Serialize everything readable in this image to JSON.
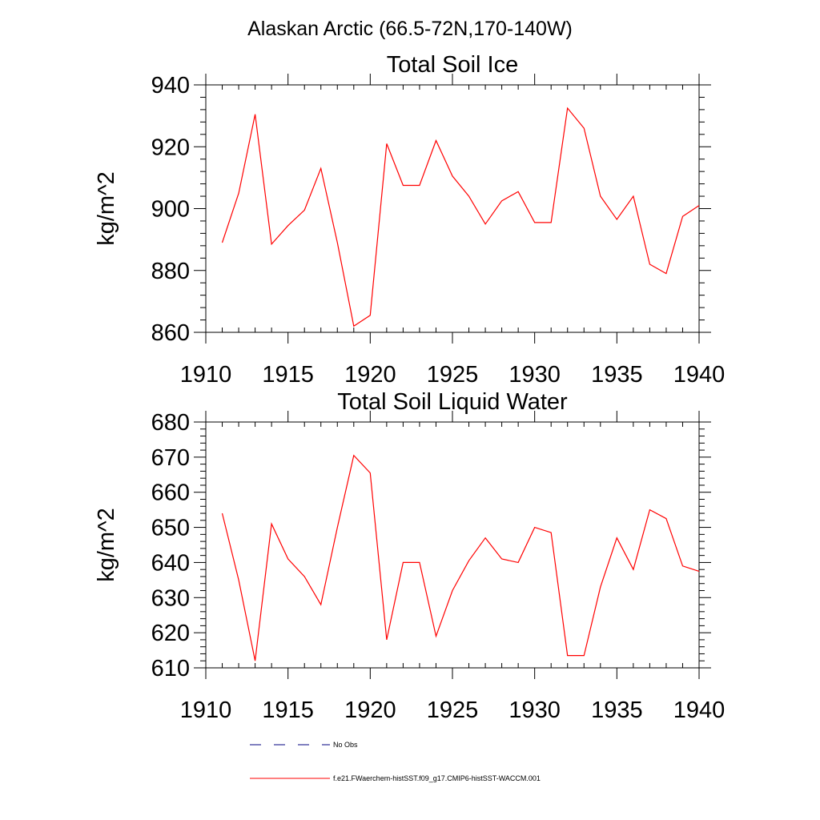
{
  "figure": {
    "title": "Alaskan Arctic (66.5-72N,170-140W)"
  },
  "legend": {
    "obs_label": "No Obs",
    "model_label": "f.e21.FWaerchem-histSST.f09_g17.CMIP6-histSST-WACCM.001",
    "obs_color": "#000080",
    "model_color": "#ff0000"
  },
  "chart_data": [
    {
      "type": "line",
      "title": "Total Soil Ice",
      "ylabel": "kg/m^2",
      "xlabel": "",
      "xlim": [
        1910,
        1940
      ],
      "ylim": [
        860,
        940
      ],
      "xticks": [
        1910,
        1915,
        1920,
        1925,
        1930,
        1935,
        1940
      ],
      "yticks": [
        860,
        880,
        900,
        920,
        940
      ],
      "series": [
        {
          "color": "#ff0000",
          "x": [
            1911,
            1912,
            1913,
            1914,
            1915,
            1916,
            1917,
            1918,
            1919,
            1920,
            1921,
            1922,
            1923,
            1924,
            1925,
            1926,
            1927,
            1928,
            1929,
            1930,
            1931,
            1932,
            1933,
            1934,
            1935,
            1936,
            1937,
            1938,
            1939,
            1940
          ],
          "values": [
            889,
            905,
            930.5,
            888.5,
            894.5,
            899.5,
            913,
            889,
            862,
            865.5,
            921,
            907.5,
            907.5,
            922,
            910.5,
            904,
            895,
            902.5,
            905.5,
            895.5,
            895.5,
            932.5,
            926,
            904,
            896.5,
            904,
            882,
            879,
            897.5,
            901
          ]
        }
      ]
    },
    {
      "type": "line",
      "title": "Total Soil Liquid Water",
      "ylabel": "kg/m^2",
      "xlabel": "",
      "xlim": [
        1910,
        1940
      ],
      "ylim": [
        610,
        680
      ],
      "xticks": [
        1910,
        1915,
        1920,
        1925,
        1930,
        1935,
        1940
      ],
      "yticks": [
        610,
        620,
        630,
        640,
        650,
        660,
        670,
        680
      ],
      "series": [
        {
          "color": "#ff0000",
          "x": [
            1911,
            1912,
            1913,
            1914,
            1915,
            1916,
            1917,
            1918,
            1919,
            1920,
            1921,
            1922,
            1923,
            1924,
            1925,
            1926,
            1927,
            1928,
            1929,
            1930,
            1931,
            1932,
            1933,
            1934,
            1935,
            1936,
            1937,
            1938,
            1939,
            1940
          ],
          "values": [
            654,
            635,
            612,
            651,
            641,
            636,
            628,
            650,
            670.5,
            665.5,
            618,
            640,
            640,
            619,
            632,
            640.5,
            647,
            641,
            640,
            650,
            648.5,
            613.5,
            613.5,
            633,
            647,
            638,
            655,
            652.5,
            639,
            637.5
          ]
        }
      ]
    }
  ]
}
